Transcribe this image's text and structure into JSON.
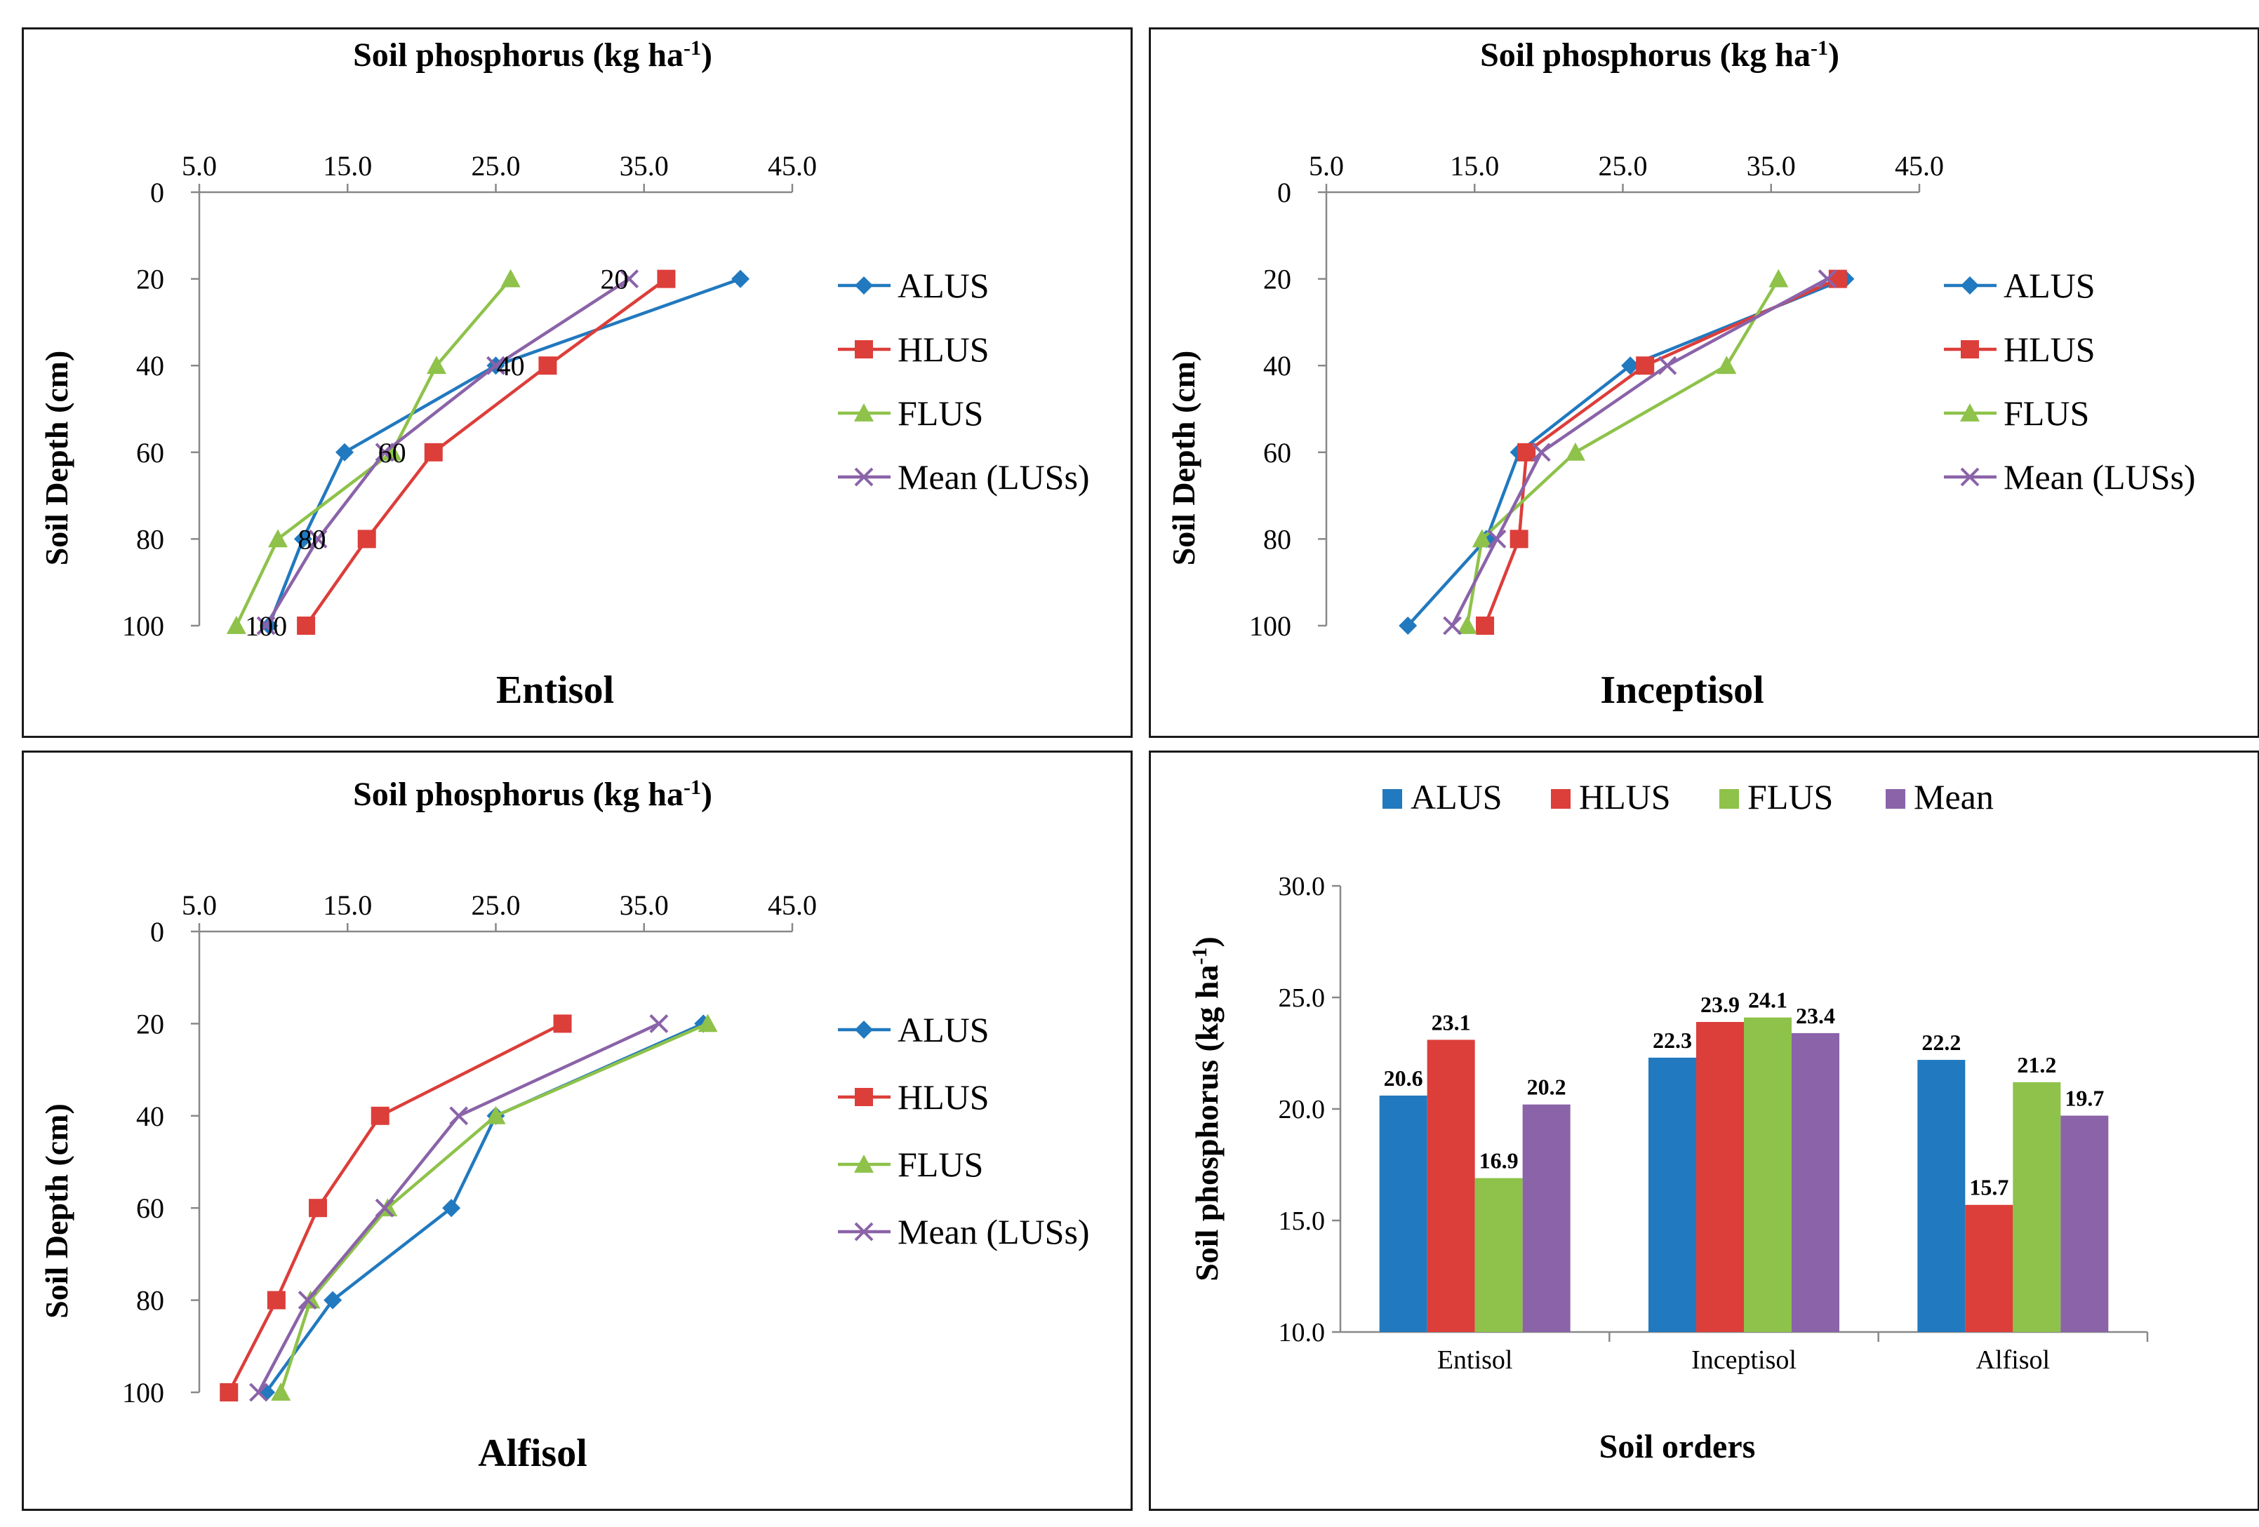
{
  "colors": {
    "ALUS": "#2179BF",
    "HLUS": "#DC3E3A",
    "FLUS": "#8EC24A",
    "Mean": "#8A63A8",
    "axis": "#888888",
    "border": "#1a1a1a"
  },
  "chart_data": [
    {
      "type": "line",
      "title": "Soil phosphorus (kg ha",
      "title_sup": "-1",
      "title_close": ")",
      "name": "Entisol",
      "ylabel": "Soil Depth (cm)",
      "xlim": [
        5,
        45
      ],
      "ylim": [
        0,
        100
      ],
      "x_ticks": [
        "5.0",
        "15.0",
        "25.0",
        "35.0",
        "45.0"
      ],
      "y_ticks": [
        "0",
        "20",
        "40",
        "60",
        "80",
        "100"
      ],
      "depths": [
        20,
        40,
        60,
        80,
        100
      ],
      "series": [
        {
          "name": "ALUS",
          "marker": "diamond",
          "values": [
            41.5,
            25.0,
            14.8,
            12.0,
            9.7
          ]
        },
        {
          "name": "HLUS",
          "marker": "square",
          "values": [
            36.5,
            28.5,
            20.8,
            16.3,
            12.2
          ]
        },
        {
          "name": "FLUS",
          "marker": "triangle",
          "values": [
            26.0,
            21.0,
            18.0,
            10.3,
            7.5
          ]
        },
        {
          "name": "Mean (LUSs)",
          "marker": "x",
          "values": [
            34.0,
            25.0,
            17.5,
            13.0,
            9.5
          ]
        }
      ],
      "point_labels": [
        "20",
        "40",
        "60",
        "80",
        "100"
      ],
      "point_label_x": [
        33.0,
        26.0,
        18.0,
        12.6,
        9.5
      ]
    },
    {
      "type": "line",
      "title": "Soil phosphorus (kg ha",
      "title_sup": "-1",
      "title_close": ")",
      "name": "Inceptisol",
      "ylabel": "Soil Depth (cm)",
      "xlim": [
        5,
        45
      ],
      "ylim": [
        0,
        100
      ],
      "x_ticks": [
        "5.0",
        "15.0",
        "25.0",
        "35.0",
        "45.0"
      ],
      "y_ticks": [
        "0",
        "20",
        "40",
        "60",
        "80",
        "100"
      ],
      "depths": [
        20,
        40,
        60,
        80,
        100
      ],
      "series": [
        {
          "name": "ALUS",
          "marker": "diamond",
          "values": [
            40.0,
            25.5,
            18.0,
            15.8,
            10.5
          ]
        },
        {
          "name": "HLUS",
          "marker": "square",
          "values": [
            39.5,
            26.5,
            18.5,
            18.0,
            15.7
          ]
        },
        {
          "name": "FLUS",
          "marker": "triangle",
          "values": [
            35.5,
            32.0,
            21.8,
            15.5,
            14.5
          ]
        },
        {
          "name": "Mean (LUSs)",
          "marker": "x",
          "values": [
            38.8,
            28.0,
            19.5,
            16.5,
            13.5
          ]
        }
      ]
    },
    {
      "type": "line",
      "title": "Soil phosphorus (kg ha",
      "title_sup": "-1",
      "title_close": ")",
      "name": "Alfisol",
      "ylabel": "Soil Depth (cm)",
      "xlim": [
        5,
        45
      ],
      "ylim": [
        0,
        100
      ],
      "x_ticks": [
        "5.0",
        "15.0",
        "25.0",
        "35.0",
        "45.0"
      ],
      "y_ticks": [
        "0",
        "20",
        "40",
        "60",
        "80",
        "100"
      ],
      "depths": [
        20,
        40,
        60,
        80,
        100
      ],
      "series": [
        {
          "name": "ALUS",
          "marker": "diamond",
          "values": [
            39.0,
            25.0,
            22.0,
            14.0,
            9.5
          ]
        },
        {
          "name": "HLUS",
          "marker": "square",
          "values": [
            29.5,
            17.2,
            13.0,
            10.2,
            7.0
          ]
        },
        {
          "name": "FLUS",
          "marker": "triangle",
          "values": [
            39.3,
            25.0,
            17.7,
            12.5,
            10.5
          ]
        },
        {
          "name": "Mean (LUSs)",
          "marker": "x",
          "values": [
            36.0,
            22.5,
            17.5,
            12.3,
            9.0
          ]
        }
      ]
    },
    {
      "type": "bar",
      "xlabel": "Soil orders",
      "ylabel": "Soil phosphorus (kg ha",
      "ylabel_sup": "-1",
      "ylabel_close": ")",
      "ylim": [
        10,
        30
      ],
      "y_ticks": [
        "10.0",
        "15.0",
        "20.0",
        "25.0",
        "30.0"
      ],
      "categories": [
        "Entisol",
        "Inceptisol",
        "Alfisol"
      ],
      "series": [
        {
          "name": "ALUS",
          "values": [
            20.6,
            22.3,
            22.2
          ]
        },
        {
          "name": "HLUS",
          "values": [
            23.1,
            23.9,
            15.7
          ]
        },
        {
          "name": "FLUS",
          "values": [
            16.9,
            24.1,
            21.2
          ]
        },
        {
          "name": "Mean",
          "values": [
            20.2,
            23.4,
            19.7
          ]
        }
      ],
      "value_labels": [
        [
          "20.6",
          "22.3",
          "22.2"
        ],
        [
          "23.1",
          "23.9",
          "15.7"
        ],
        [
          "16.9",
          "24.1",
          "21.2"
        ],
        [
          "20.2",
          "23.4",
          "19.7"
        ]
      ],
      "legend_position": "top"
    }
  ]
}
